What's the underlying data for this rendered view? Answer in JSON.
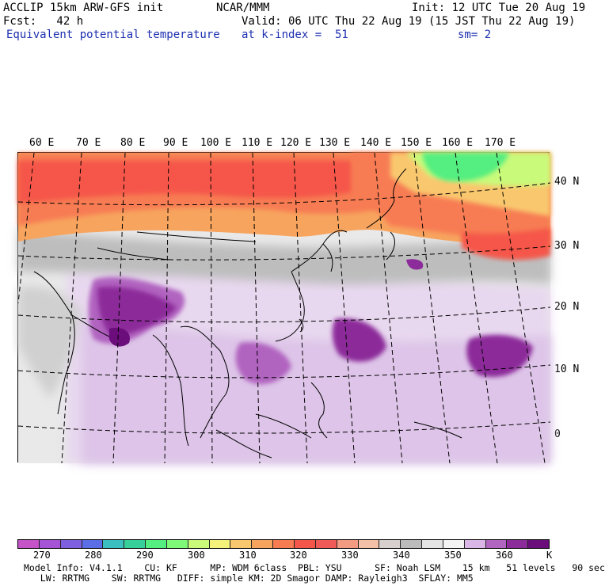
{
  "header": {
    "model": "ACCLIP 15km ARW-GFS init",
    "org": "NCAR/MMM",
    "init": "Init: 12 UTC Tue 20 Aug 19",
    "fcst": "Fcst:   42 h",
    "valid": "Valid: 06 UTC Thu 22 Aug 19 (15 JST Thu 22 Aug 19)",
    "field": "Equivalent potential temperature",
    "level": "at k-index =  51",
    "smooth": "sm= 2"
  },
  "map": {
    "lon_labels": [
      "60 E",
      "70 E",
      "80 E",
      "90 E",
      "100 E",
      "110 E",
      "120 E",
      "130 E",
      "140 E",
      "150 E",
      "160 E",
      "170 E"
    ],
    "lat_labels": [
      "40 N",
      "30 N",
      "20 N",
      "10 N",
      "0"
    ]
  },
  "colorbar": {
    "colors": [
      "#c653c8",
      "#a653d6",
      "#7d5fe0",
      "#5c6ee6",
      "#3bbfbf",
      "#38d09a",
      "#55ee80",
      "#7ffa78",
      "#c9fa7a",
      "#f5f27b",
      "#f9c86e",
      "#f7a45e",
      "#f77c52",
      "#f5564a",
      "#ef5a58",
      "#f39a82",
      "#f2c0a6",
      "#d7d0cc",
      "#bbbbbb",
      "#e4e4e4",
      "#f3f3f3",
      "#d9b6e6",
      "#b164c0",
      "#8c2b9a",
      "#6b0d7b"
    ],
    "tick_labels": [
      "270",
      "280",
      "290",
      "300",
      "310",
      "320",
      "330",
      "340",
      "350",
      "360"
    ],
    "unit": "K"
  },
  "footer": {
    "line1": "Model Info: V4.1.1    CU: KF      MP: WDM 6class  PBL: YSU      SF: Noah LSM    15 km   51 levels   90 sec",
    "line2": "   LW: RRTMG    SW: RRTMG   DIFF: simple KM: 2D Smagor DAMP: Rayleigh3  SFLAY: MM5"
  }
}
